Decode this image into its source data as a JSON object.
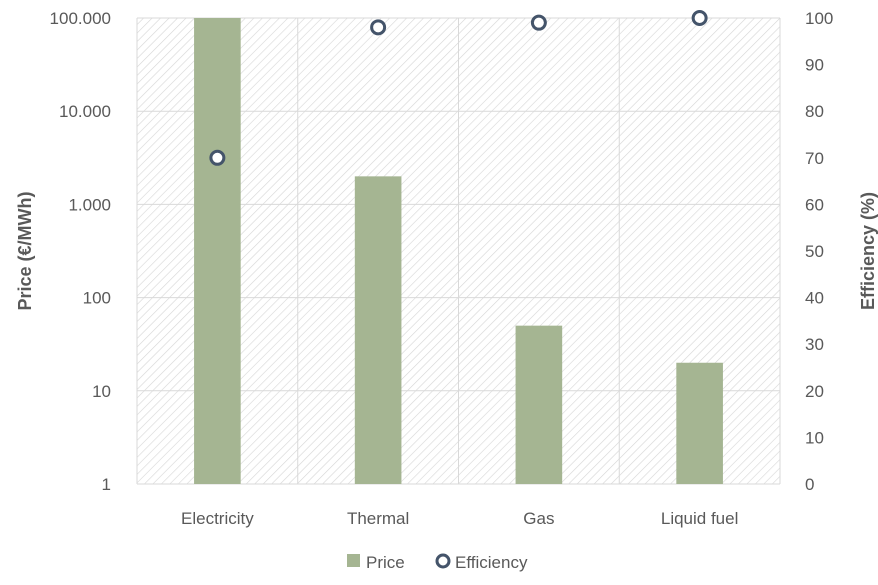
{
  "chart_data": {
    "type": "bar",
    "categories": [
      "Electricity",
      "Thermal",
      "Gas",
      "Liquid fuel"
    ],
    "series": [
      {
        "name": "Price",
        "kind": "bar",
        "axis": "left",
        "values": [
          100000,
          2000,
          50,
          20
        ],
        "color": "#A5B592"
      },
      {
        "name": "Efficiency",
        "kind": "scatter",
        "axis": "right",
        "values": [
          70,
          98,
          99,
          100
        ],
        "color": "#44546A"
      }
    ],
    "y_left": {
      "label": "Price (€/MWh)",
      "scale": "log",
      "ylim": [
        1,
        100000
      ],
      "ticks": [
        1,
        10,
        100,
        1000,
        10000,
        100000
      ],
      "tick_labels": [
        "1",
        "10",
        "100",
        "1.000",
        "10.000",
        "100.000"
      ]
    },
    "y_right": {
      "label": "Efficiency  (%)",
      "scale": "linear",
      "ylim": [
        0,
        100
      ],
      "ticks": [
        0,
        10,
        20,
        30,
        40,
        50,
        60,
        70,
        80,
        90,
        100
      ],
      "tick_labels": [
        "0",
        "10",
        "20",
        "30",
        "40",
        "50",
        "60",
        "70",
        "80",
        "90",
        "100"
      ]
    },
    "grid": true,
    "legend": {
      "position": "bottom",
      "entries": [
        "Price",
        "Efficiency"
      ]
    }
  }
}
